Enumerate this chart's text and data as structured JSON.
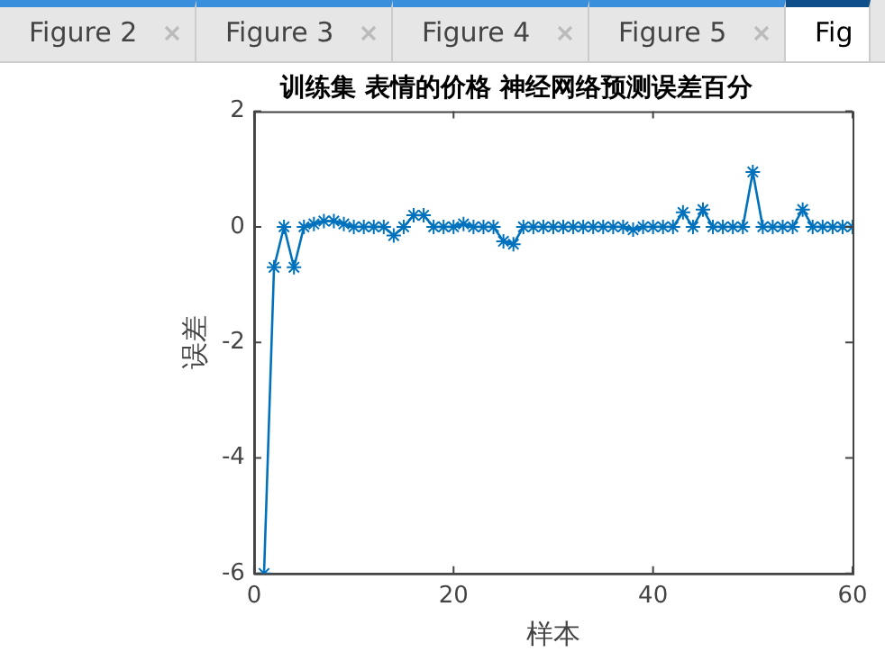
{
  "chart_data": {
    "type": "line",
    "title": "训练集 表情的价格 神经网络预测误差百分",
    "xlabel": "样本",
    "ylabel": "误差",
    "annotations": [
      "Figure 2",
      "Figure 3",
      "Figure 4",
      "Figure 5",
      "Fig"
    ],
    "x": [
      1,
      2,
      3,
      4,
      5,
      6,
      7,
      8,
      9,
      10,
      11,
      12,
      13,
      14,
      15,
      16,
      17,
      18,
      19,
      20,
      21,
      22,
      23,
      24,
      25,
      26,
      27,
      28,
      29,
      30,
      31,
      32,
      33,
      34,
      35,
      36,
      37,
      38,
      39,
      40,
      41,
      42,
      43,
      44,
      45,
      46,
      47,
      48,
      49,
      50,
      51,
      52,
      53,
      54,
      55,
      56,
      57,
      58,
      59,
      60
    ],
    "series": [
      {
        "color": "#0072bd",
        "values": [
          -6,
          -0.7,
          0,
          -0.7,
          0,
          0.05,
          0.1,
          0.1,
          0.05,
          0,
          0,
          0,
          0,
          -0.15,
          0,
          0.2,
          0.2,
          0,
          0,
          0,
          0.05,
          0,
          0,
          0,
          -0.25,
          -0.3,
          0,
          0,
          0,
          0,
          0,
          0,
          0,
          0,
          0,
          0,
          0,
          -0.05,
          0,
          0,
          0,
          0,
          0.25,
          0,
          0.3,
          0,
          0,
          0,
          0,
          0.95,
          0,
          0,
          0,
          0,
          0.3,
          0,
          0,
          0,
          0,
          0
        ]
      }
    ],
    "xlim": [
      0,
      60
    ],
    "xticks": [
      0,
      20,
      40,
      60
    ],
    "ylim": [
      -6,
      2
    ],
    "yticks": [
      -6,
      -4,
      -2,
      0,
      2
    ],
    "grid": false,
    "legend": false,
    "marker": "cross",
    "line_style": "solid"
  }
}
